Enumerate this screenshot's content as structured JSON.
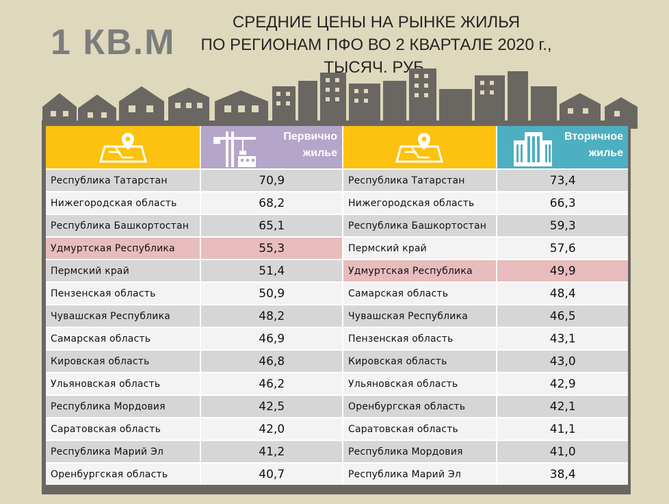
{
  "big_title": "1 КВ.М",
  "title_lines": [
    "СРЕДНИЕ ЦЕНЫ НА РЫНКЕ ЖИЛЬЯ",
    "ПО РЕГИОНАМ ПФО ВО 2 КВАРТАЛЕ 2020 г.,",
    "ТЫСЯЧ. РУБ."
  ],
  "headers": {
    "primary": [
      "Первично",
      "жилье"
    ],
    "secondary": [
      "Вторичное",
      "жилье"
    ]
  },
  "colors": {
    "background": "#ded8bd",
    "header_yellow": "#fdc20f",
    "header_purple": "#b4a5c9",
    "header_blue": "#4dafc2",
    "highlight": "#e8bcbc",
    "row_grey": "#d6d6d6"
  },
  "icons": [
    "map-pin-icon",
    "construction-crane-icon",
    "map-pin-icon",
    "apartment-building-icon",
    "city-skyline"
  ],
  "rows": [
    {
      "p_region": "Республика Татарстан",
      "p_value": "70,9",
      "s_region": "Республика Татарстан",
      "s_value": "73,4"
    },
    {
      "p_region": "Нижегородская область",
      "p_value": "68,2",
      "s_region": "Нижегородская область",
      "s_value": "66,3"
    },
    {
      "p_region": "Республика Башкортостан",
      "p_value": "65,1",
      "s_region": "Республика Башкортостан",
      "s_value": "59,3"
    },
    {
      "p_region": "Удмуртская Республика",
      "p_value": "55,3",
      "s_region": "Пермский край",
      "s_value": "57,6"
    },
    {
      "p_region": "Пермский край",
      "p_value": "51,4",
      "s_region": "Удмуртская Республика",
      "s_value": "49,9"
    },
    {
      "p_region": "Пензенская область",
      "p_value": "50,9",
      "s_region": "Самарская область",
      "s_value": "48,4"
    },
    {
      "p_region": "Чувашская Республика",
      "p_value": "48,2",
      "s_region": "Чувашская Республика",
      "s_value": "46,5"
    },
    {
      "p_region": "Самарская область",
      "p_value": "46,9",
      "s_region": "Пензенская область",
      "s_value": "43,1"
    },
    {
      "p_region": "Кировская область",
      "p_value": "46,8",
      "s_region": "Кировская область",
      "s_value": "43,0"
    },
    {
      "p_region": "Ульяновская область",
      "p_value": "46,2",
      "s_region": "Ульяновская область",
      "s_value": "42,9"
    },
    {
      "p_region": "Республика Мордовия",
      "p_value": "42,5",
      "s_region": "Оренбургская область",
      "s_value": "42,1"
    },
    {
      "p_region": "Саратовская область",
      "p_value": "42,0",
      "s_region": "Саратовская область",
      "s_value": "41,1"
    },
    {
      "p_region": "Республика Марий Эл",
      "p_value": "41,2",
      "s_region": "Республика Мордовия",
      "s_value": "41,0"
    },
    {
      "p_region": "Оренбургская область",
      "p_value": "40,7",
      "s_region": "Республика Марий Эл",
      "s_value": "38,4"
    }
  ],
  "highlight_region": "Удмуртская Республика"
}
